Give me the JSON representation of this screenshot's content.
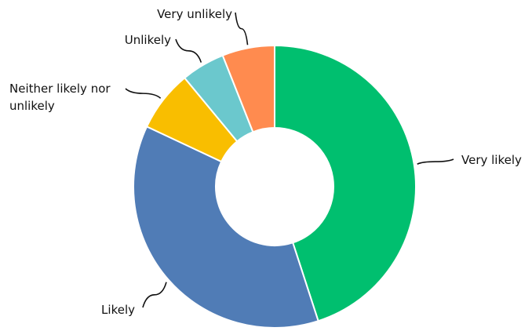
{
  "chart_data": {
    "type": "pie",
    "donut": true,
    "categories": [
      "Very likely",
      "Likely",
      "Neither likely nor unlikely",
      "Unlikely",
      "Very unlikely"
    ],
    "values": [
      45,
      37,
      7,
      5,
      6
    ],
    "unit": "%",
    "colors": [
      "#00bf6f",
      "#507cb6",
      "#f9be00",
      "#6bc8cd",
      "#ff8b4f"
    ],
    "start_angle_deg": 0,
    "direction": "clockwise",
    "legend": "none",
    "labels_on_chart": true,
    "title": ""
  }
}
